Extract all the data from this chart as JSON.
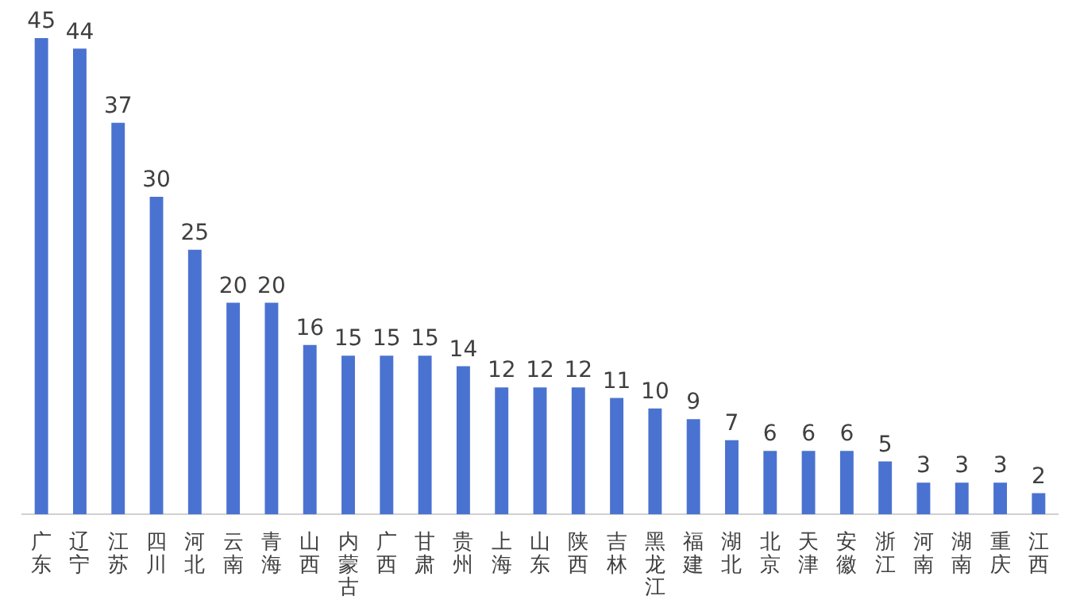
{
  "chart_data": {
    "type": "bar",
    "categories": [
      "广东",
      "辽宁",
      "江苏",
      "四川",
      "河北",
      "云南",
      "青海",
      "山西",
      "内蒙古",
      "广西",
      "甘肃",
      "贵州",
      "上海",
      "山东",
      "陕西",
      "吉林",
      "黑龙江",
      "福建",
      "湖北",
      "北京",
      "天津",
      "安徽",
      "浙江",
      "河南",
      "湖南",
      "重庆",
      "江西"
    ],
    "values": [
      45,
      44,
      37,
      30,
      25,
      20,
      20,
      16,
      15,
      15,
      15,
      14,
      12,
      12,
      12,
      11,
      10,
      9,
      7,
      6,
      6,
      6,
      5,
      3,
      3,
      3,
      2
    ],
    "color": "#4a72d0",
    "data_labels": true,
    "grid": false,
    "legend": false,
    "tick_labels": "x"
  }
}
